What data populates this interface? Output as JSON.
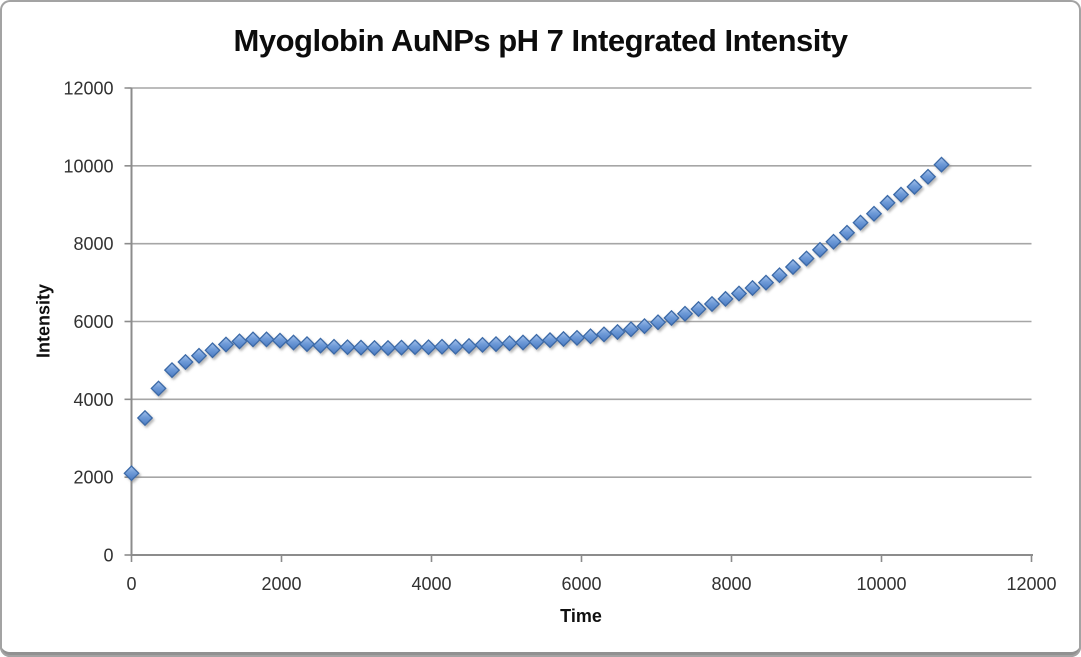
{
  "frame": {
    "background": "#ffffff",
    "border_color": "#a3a3a3"
  },
  "chart_data": {
    "type": "scatter",
    "title": "Myoglobin AuNPs pH 7 Integrated Intensity",
    "xlabel": "Time",
    "ylabel": "Intensity",
    "xlim": [
      0,
      12000
    ],
    "ylim": [
      0,
      12000
    ],
    "xticks": [
      0,
      2000,
      4000,
      6000,
      8000,
      10000,
      12000
    ],
    "yticks": [
      0,
      2000,
      4000,
      6000,
      8000,
      10000,
      12000
    ],
    "grid": "horizontal-only",
    "legend": "none",
    "marker": {
      "shape": "diamond",
      "size": 14.4,
      "fill_light": "#a6c3ec",
      "fill_mid": "#6f9bd8",
      "fill_dark": "#4a7ac2",
      "stroke": "#3a69a7",
      "shadow": true
    },
    "colors": {
      "gridline": "#a6a6a6",
      "axis": "#8c8c8c",
      "tick_label": "#323232",
      "title": "#0c0c0c"
    },
    "series": [
      {
        "x": [
          0,
          180,
          360,
          540,
          720,
          900,
          1080,
          1260,
          1440,
          1620,
          1800,
          1980,
          2160,
          2340,
          2520,
          2700,
          2880,
          3060,
          3240,
          3420,
          3600,
          3780,
          3960,
          4140,
          4320,
          4500,
          4680,
          4860,
          5040,
          5220,
          5400,
          5580,
          5760,
          5940,
          6120,
          6300,
          6480,
          6660,
          6840,
          7020,
          7200,
          7380,
          7560,
          7740,
          7920,
          8100,
          8280,
          8460,
          8640,
          8820,
          9000,
          9180,
          9360,
          9540,
          9720,
          9900,
          10080,
          10260,
          10440,
          10620,
          10800
        ],
        "y": [
          2100,
          3520,
          4280,
          4750,
          4960,
          5120,
          5260,
          5410,
          5490,
          5540,
          5540,
          5510,
          5460,
          5420,
          5380,
          5350,
          5340,
          5330,
          5320,
          5320,
          5330,
          5340,
          5340,
          5350,
          5350,
          5370,
          5400,
          5420,
          5440,
          5460,
          5480,
          5520,
          5550,
          5580,
          5620,
          5670,
          5730,
          5800,
          5880,
          5980,
          6090,
          6200,
          6320,
          6450,
          6580,
          6720,
          6860,
          7000,
          7190,
          7400,
          7620,
          7840,
          8050,
          8280,
          8540,
          8770,
          9050,
          9260,
          9460,
          9720,
          10030
        ]
      }
    ]
  }
}
